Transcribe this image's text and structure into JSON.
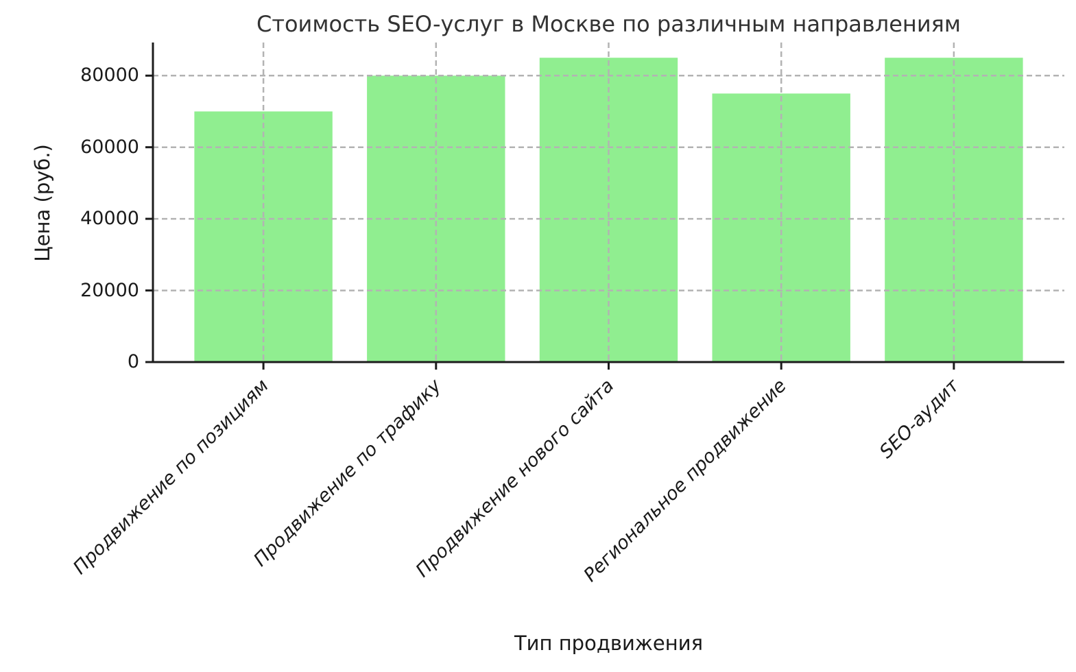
{
  "chart_data": {
    "type": "bar",
    "title": "Стоимость SEO-услуг в Москве по различным направлениям",
    "xlabel": "Тип продвижения",
    "ylabel": "Цена (руб.)",
    "categories": [
      "Продвижение по позициям",
      "Продвижение по трафику",
      "Продвижение нового сайта",
      "Региональное продвижение",
      "SEO-аудит"
    ],
    "values": [
      70000,
      80000,
      85000,
      75000,
      85000
    ],
    "yticks": [
      0,
      20000,
      40000,
      60000,
      80000
    ],
    "ylim": [
      0,
      89250
    ],
    "bar_color": "#90ee90",
    "grid": true,
    "grid_line_style": "dashed",
    "grid_color": "#b3b3b3",
    "spine_color": "#1c1c1c",
    "text_color": "#1a1a1a",
    "title_color": "#333333",
    "background_color": "#ffffff",
    "legend": "none",
    "x_tick_label_rotation_deg": 45,
    "x_tick_label_style": "italic"
  }
}
